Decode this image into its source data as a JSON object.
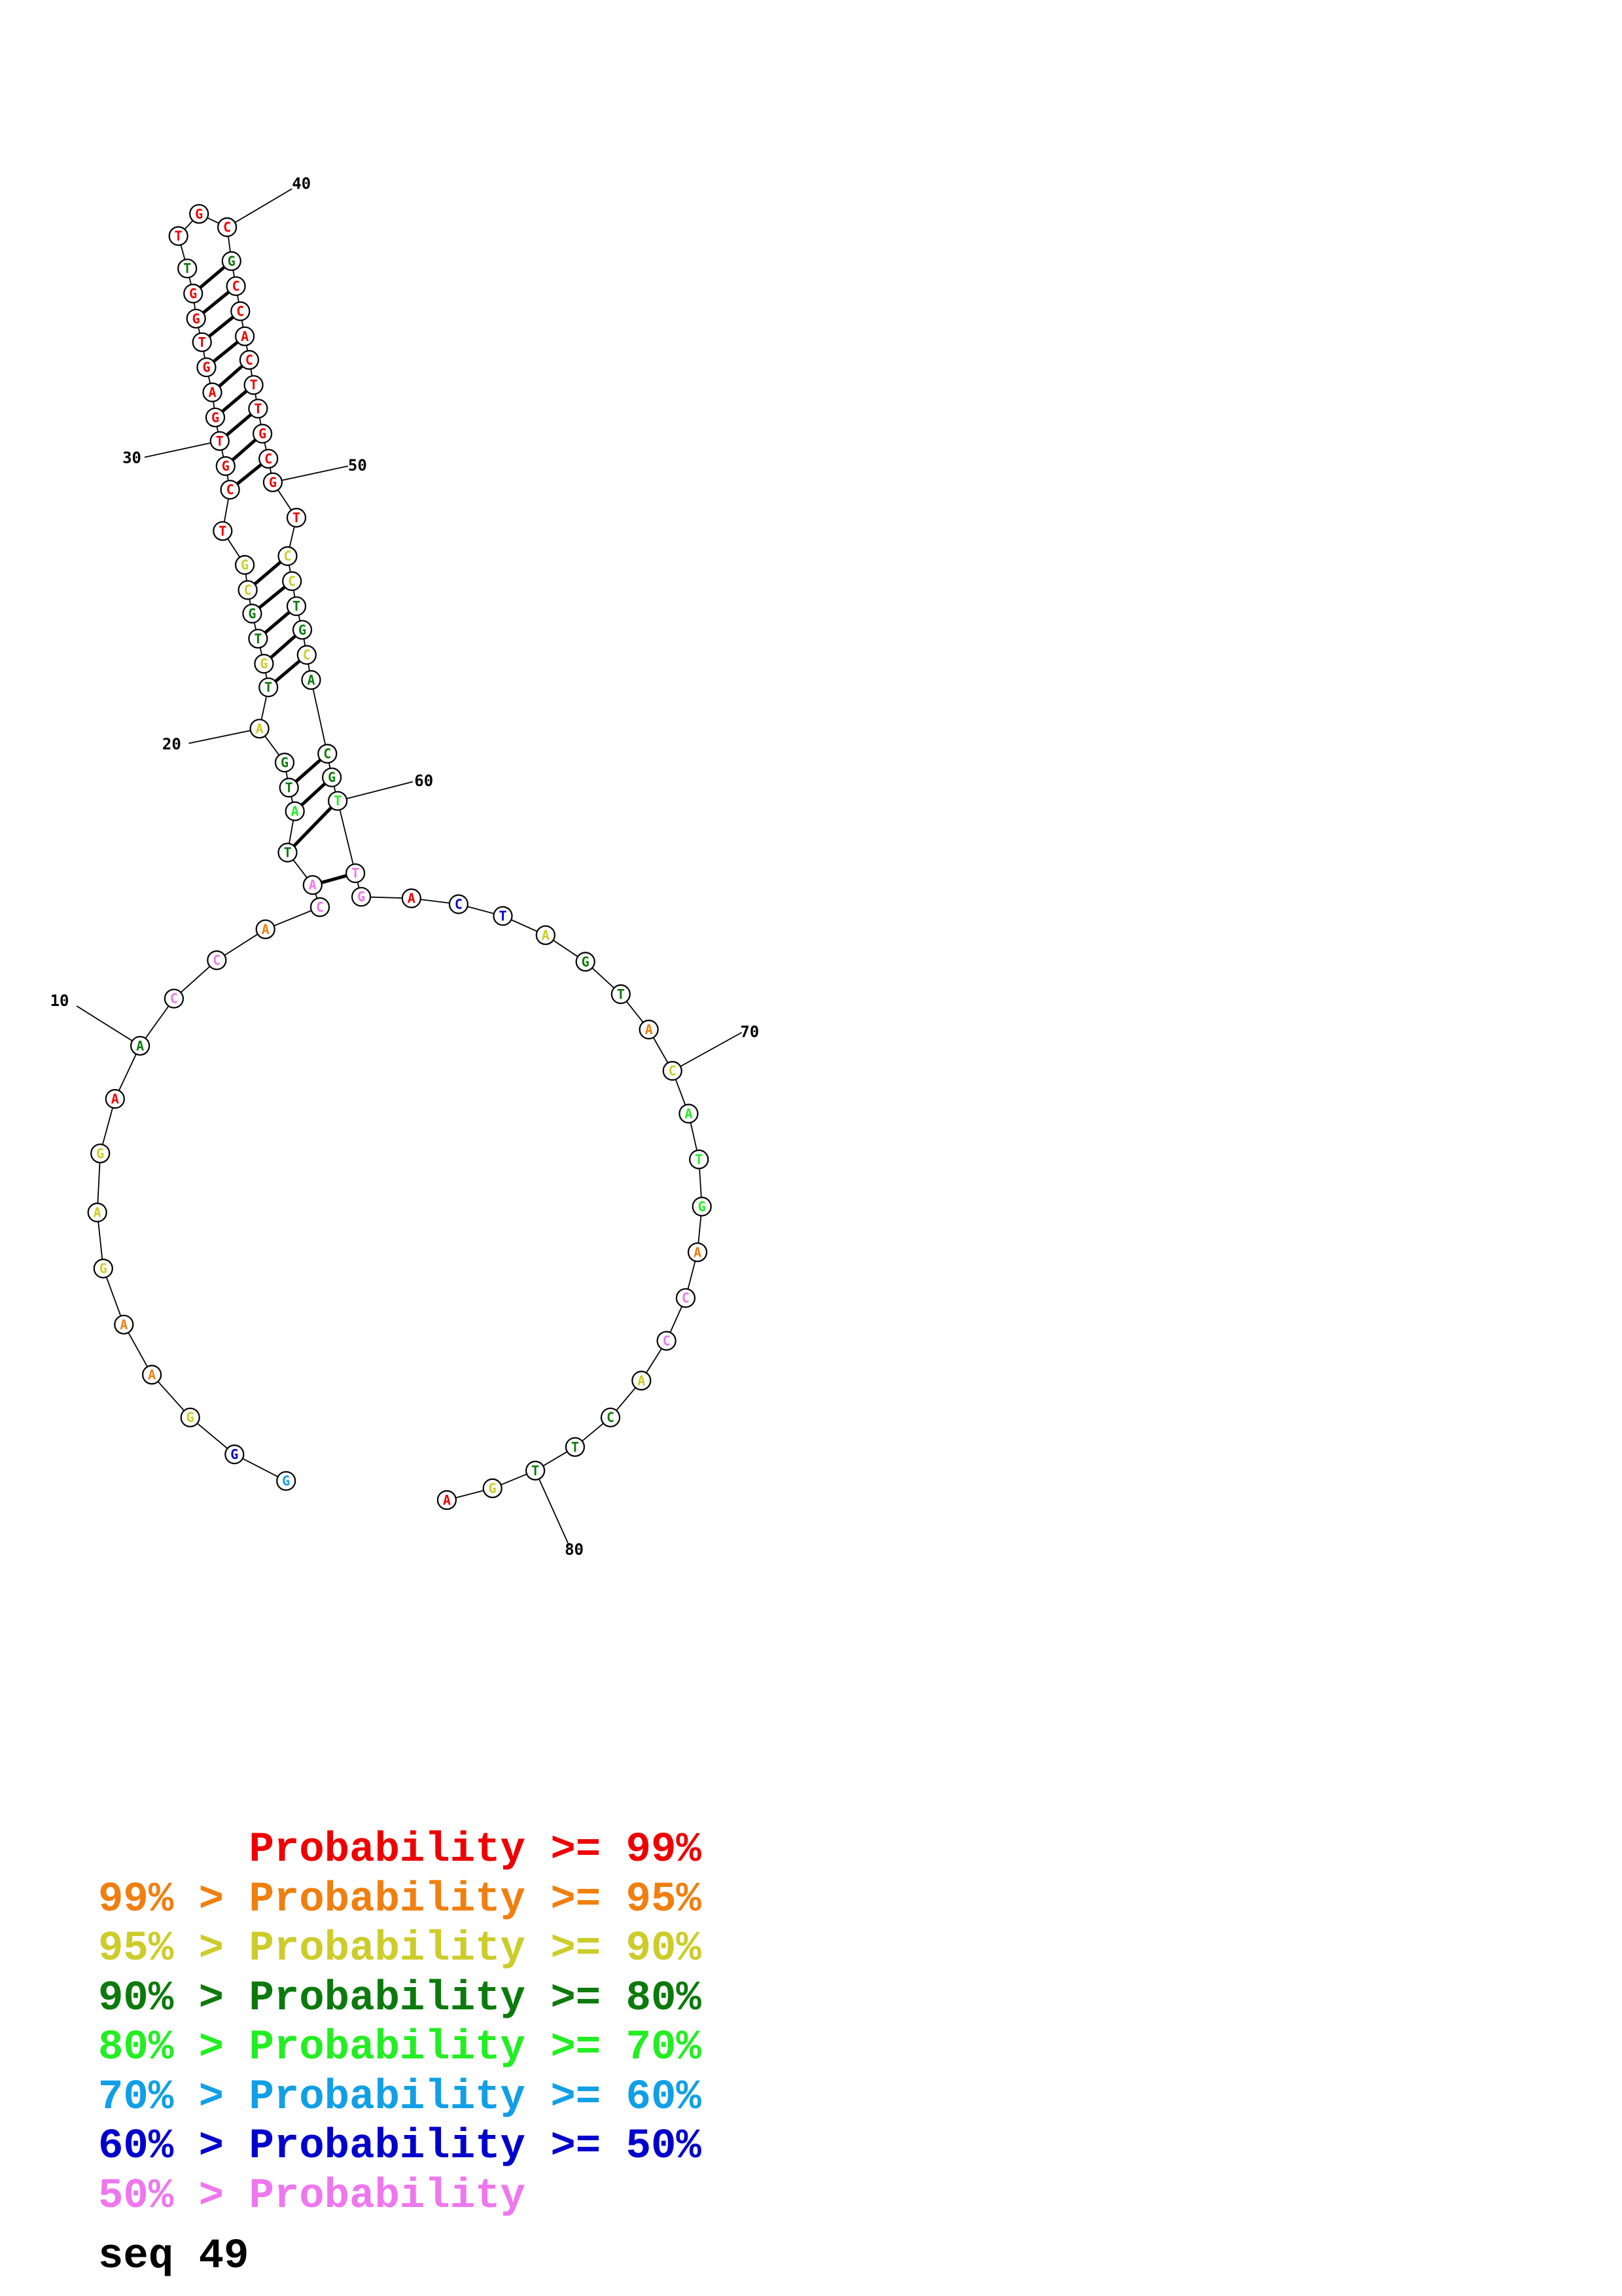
{
  "colors": {
    "p99": "#ee0000",
    "p95": "#f07f0f",
    "p90": "#cccc2a",
    "p80": "#0c7a0c",
    "p70": "#22ee22",
    "p60": "#119fe6",
    "p50": "#0000cc",
    "plt50": "#ee77ee"
  },
  "structure": {
    "nucleotides": [
      {
        "n": 1,
        "base": "G",
        "p": "p60"
      },
      {
        "n": 2,
        "base": "G",
        "p": "p50"
      },
      {
        "n": 3,
        "base": "G",
        "p": "p90"
      },
      {
        "n": 4,
        "base": "A",
        "p": "p95"
      },
      {
        "n": 5,
        "base": "A",
        "p": "p95"
      },
      {
        "n": 6,
        "base": "G",
        "p": "p90"
      },
      {
        "n": 7,
        "base": "A",
        "p": "p90"
      },
      {
        "n": 8,
        "base": "G",
        "p": "p90"
      },
      {
        "n": 9,
        "base": "A",
        "p": "p99"
      },
      {
        "n": 10,
        "base": "A",
        "p": "p80"
      },
      {
        "n": 11,
        "base": "C",
        "p": "plt50"
      },
      {
        "n": 12,
        "base": "C",
        "p": "plt50"
      },
      {
        "n": 13,
        "base": "A",
        "p": "p95"
      },
      {
        "n": 14,
        "base": "C",
        "p": "plt50"
      },
      {
        "n": 15,
        "base": "A",
        "p": "plt50"
      },
      {
        "n": 16,
        "base": "T",
        "p": "p80"
      },
      {
        "n": 17,
        "base": "A",
        "p": "p70"
      },
      {
        "n": 18,
        "base": "T",
        "p": "p80"
      },
      {
        "n": 19,
        "base": "G",
        "p": "p80"
      },
      {
        "n": 20,
        "base": "A",
        "p": "p90"
      },
      {
        "n": 21,
        "base": "T",
        "p": "p80"
      },
      {
        "n": 22,
        "base": "G",
        "p": "p90"
      },
      {
        "n": 23,
        "base": "T",
        "p": "p80"
      },
      {
        "n": 24,
        "base": "G",
        "p": "p80"
      },
      {
        "n": 25,
        "base": "C",
        "p": "p90"
      },
      {
        "n": 26,
        "base": "G",
        "p": "p90"
      },
      {
        "n": 27,
        "base": "T",
        "p": "p99"
      },
      {
        "n": 28,
        "base": "C",
        "p": "p99"
      },
      {
        "n": 29,
        "base": "G",
        "p": "p99"
      },
      {
        "n": 30,
        "base": "T",
        "p": "p99"
      },
      {
        "n": 31,
        "base": "G",
        "p": "p99"
      },
      {
        "n": 32,
        "base": "A",
        "p": "p99"
      },
      {
        "n": 33,
        "base": "G",
        "p": "p99"
      },
      {
        "n": 34,
        "base": "T",
        "p": "p99"
      },
      {
        "n": 35,
        "base": "G",
        "p": "p99"
      },
      {
        "n": 36,
        "base": "G",
        "p": "p99"
      },
      {
        "n": 37,
        "base": "T",
        "p": "p80"
      },
      {
        "n": 38,
        "base": "T",
        "p": "p99"
      },
      {
        "n": 39,
        "base": "G",
        "p": "p99"
      },
      {
        "n": 40,
        "base": "C",
        "p": "p99"
      },
      {
        "n": 41,
        "base": "G",
        "p": "p80"
      },
      {
        "n": 42,
        "base": "C",
        "p": "p99"
      },
      {
        "n": 43,
        "base": "C",
        "p": "p99"
      },
      {
        "n": 44,
        "base": "A",
        "p": "p99"
      },
      {
        "n": 45,
        "base": "C",
        "p": "p99"
      },
      {
        "n": 46,
        "base": "T",
        "p": "p99"
      },
      {
        "n": 47,
        "base": "T",
        "p": "p99"
      },
      {
        "n": 48,
        "base": "G",
        "p": "p99"
      },
      {
        "n": 49,
        "base": "C",
        "p": "p99"
      },
      {
        "n": 50,
        "base": "G",
        "p": "p99"
      },
      {
        "n": 51,
        "base": "T",
        "p": "p99"
      },
      {
        "n": 52,
        "base": "C",
        "p": "p90"
      },
      {
        "n": 53,
        "base": "C",
        "p": "p90"
      },
      {
        "n": 54,
        "base": "T",
        "p": "p80"
      },
      {
        "n": 55,
        "base": "G",
        "p": "p80"
      },
      {
        "n": 56,
        "base": "C",
        "p": "p90"
      },
      {
        "n": 57,
        "base": "A",
        "p": "p80"
      },
      {
        "n": 58,
        "base": "C",
        "p": "p80"
      },
      {
        "n": 59,
        "base": "G",
        "p": "p80"
      },
      {
        "n": 60,
        "base": "T",
        "p": "p70"
      },
      {
        "n": 61,
        "base": "T",
        "p": "plt50"
      },
      {
        "n": 62,
        "base": "G",
        "p": "plt50"
      },
      {
        "n": 63,
        "base": "A",
        "p": "p99"
      },
      {
        "n": 64,
        "base": "C",
        "p": "p50"
      },
      {
        "n": 65,
        "base": "T",
        "p": "p50"
      },
      {
        "n": 66,
        "base": "A",
        "p": "p90"
      },
      {
        "n": 67,
        "base": "G",
        "p": "p80"
      },
      {
        "n": 68,
        "base": "T",
        "p": "p80"
      },
      {
        "n": 69,
        "base": "A",
        "p": "p95"
      },
      {
        "n": 70,
        "base": "C",
        "p": "p90"
      },
      {
        "n": 71,
        "base": "A",
        "p": "p70"
      },
      {
        "n": 72,
        "base": "T",
        "p": "p70"
      },
      {
        "n": 73,
        "base": "G",
        "p": "p70"
      },
      {
        "n": 74,
        "base": "A",
        "p": "p95"
      },
      {
        "n": 75,
        "base": "C",
        "p": "plt50"
      },
      {
        "n": 76,
        "base": "C",
        "p": "plt50"
      },
      {
        "n": 77,
        "base": "A",
        "p": "p90"
      },
      {
        "n": 78,
        "base": "C",
        "p": "p80"
      },
      {
        "n": 79,
        "base": "T",
        "p": "p80"
      },
      {
        "n": 80,
        "base": "T",
        "p": "p80"
      },
      {
        "n": 81,
        "base": "G",
        "p": "p90"
      },
      {
        "n": 82,
        "base": "A",
        "p": "p99"
      }
    ],
    "pairs": [
      [
        15,
        61
      ],
      [
        16,
        60
      ],
      [
        17,
        59
      ],
      [
        18,
        58
      ],
      [
        21,
        56
      ],
      [
        22,
        55
      ],
      [
        23,
        54
      ],
      [
        24,
        53
      ],
      [
        25,
        52
      ],
      [
        28,
        49
      ],
      [
        29,
        48
      ],
      [
        30,
        47
      ],
      [
        31,
        46
      ],
      [
        32,
        45
      ],
      [
        33,
        44
      ],
      [
        34,
        43
      ],
      [
        35,
        42
      ],
      [
        36,
        41
      ]
    ],
    "position_labels": [
      "10",
      "20",
      "30",
      "40",
      "50",
      "60",
      "70",
      "80"
    ]
  },
  "legend": {
    "rows": [
      {
        "prefix": "",
        "label": "Probability",
        "suffix": ">= 99%",
        "color_key": "p99"
      },
      {
        "prefix": "99% >",
        "label": "Probability",
        "suffix": ">= 95%",
        "color_key": "p95"
      },
      {
        "prefix": "95% >",
        "label": "Probability",
        "suffix": ">= 90%",
        "color_key": "p90"
      },
      {
        "prefix": "90% >",
        "label": "Probability",
        "suffix": ">= 80%",
        "color_key": "p80"
      },
      {
        "prefix": "80% >",
        "label": "Probability",
        "suffix": ">= 70%",
        "color_key": "p70"
      },
      {
        "prefix": "70% >",
        "label": "Probability",
        "suffix": ">= 60%",
        "color_key": "p60"
      },
      {
        "prefix": "60% >",
        "label": "Probability",
        "suffix": ">= 50%",
        "color_key": "p50"
      },
      {
        "prefix": "50% >",
        "label": "Probability",
        "suffix": "",
        "color_key": "plt50"
      }
    ]
  },
  "sequence_name": "seq 49"
}
